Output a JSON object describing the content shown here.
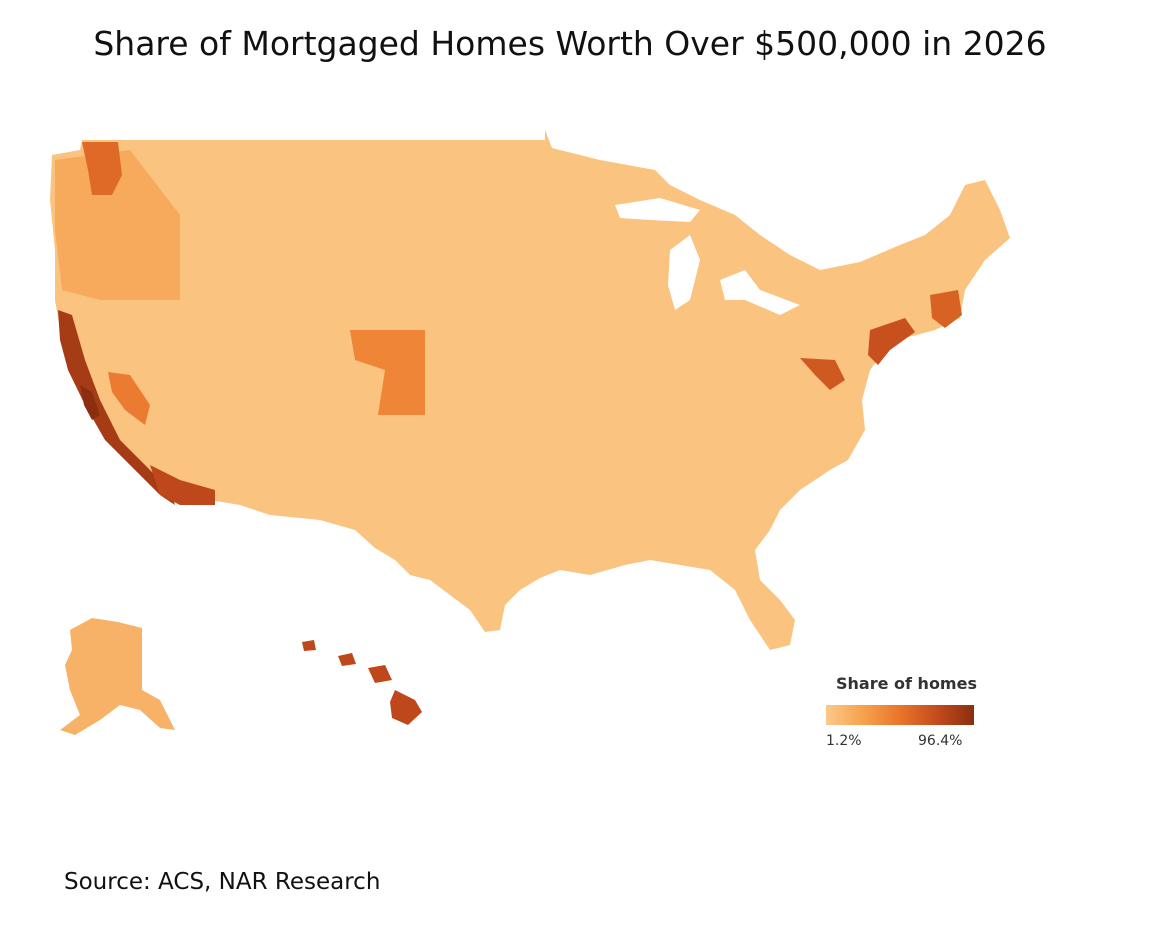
{
  "title": "Share of Mortgaged Homes Worth Over $500,000 in 2026",
  "source": "Source: ACS, NAR Research",
  "legend": {
    "title": "Share of homes",
    "min_label": "1.2%",
    "max_label": "96.4%",
    "min_value": 1.2,
    "max_value": 96.4,
    "colors": [
      "#fbc98a",
      "#f6a24e",
      "#e9742a",
      "#c44b1d",
      "#8a2e10"
    ]
  },
  "map": {
    "base_color": "#f8bb73",
    "regions": [
      {
        "name": "us-contiguous",
        "value": 5
      },
      {
        "name": "pacific-northwest",
        "value": 20
      },
      {
        "name": "seattle-area",
        "value": 55
      },
      {
        "name": "california-coast",
        "value": 85
      },
      {
        "name": "bay-area",
        "value": 96
      },
      {
        "name": "southern-california",
        "value": 75
      },
      {
        "name": "central-valley",
        "value": 45
      },
      {
        "name": "colorado-front-range",
        "value": 40
      },
      {
        "name": "northeast-corridor",
        "value": 70
      },
      {
        "name": "dc-area",
        "value": 65
      },
      {
        "name": "boston-area",
        "value": 60
      },
      {
        "name": "alaska",
        "value": 15
      },
      {
        "name": "hawaii",
        "value": 75
      }
    ]
  }
}
